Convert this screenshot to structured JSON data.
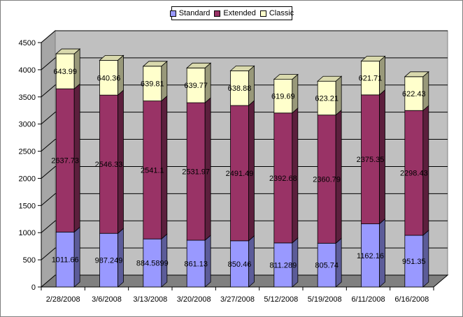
{
  "chart_data": {
    "type": "bar",
    "stacked": true,
    "three_d": true,
    "categories": [
      "2/28/2008",
      "3/6/2008",
      "3/13/2008",
      "3/20/2008",
      "3/27/2008",
      "5/12/2008",
      "5/19/2008",
      "6/11/2008",
      "6/16/2008"
    ],
    "series": [
      {
        "name": "Standard",
        "color": "#9999ff",
        "values": [
          1011.66,
          987.249,
          884.5899,
          861.13,
          850.46,
          811.289,
          805.74,
          1162.16,
          951.35
        ],
        "labels": [
          "1011.66",
          "987.249",
          "884.5899",
          "861.13",
          "850.46",
          "811.289",
          "805.74",
          "1162.16",
          "951.35"
        ]
      },
      {
        "name": "Extended",
        "color": "#993366",
        "values": [
          2637.73,
          2546.33,
          2541.1,
          2531.97,
          2491.49,
          2392.68,
          2360.79,
          2375.35,
          2298.43
        ],
        "labels": [
          "2637.73",
          "2546.33",
          "2541.1",
          "2531.97",
          "2491.49",
          "2392.68",
          "2360.79",
          "2375.35",
          "2298.43"
        ]
      },
      {
        "name": "Classic",
        "color": "#ffffcc",
        "values": [
          643.99,
          640.36,
          639.81,
          639.77,
          638.88,
          619.69,
          623.21,
          621.71,
          622.43
        ],
        "labels": [
          "643.99",
          "640.36",
          "639.81",
          "639.77",
          "638.88",
          "619.69",
          "623.21",
          "621.71",
          "622.43"
        ]
      }
    ],
    "yticks": [
      "0",
      "500",
      "1000",
      "1500",
      "2000",
      "2500",
      "3000",
      "3500",
      "4000",
      "4500"
    ],
    "ylim": [
      0,
      4500
    ],
    "title": "",
    "xlabel": "",
    "ylabel": "",
    "grid": true,
    "legend_position": "top-center",
    "wall_color": "#c0c0c0",
    "floor_color": "#808080"
  }
}
